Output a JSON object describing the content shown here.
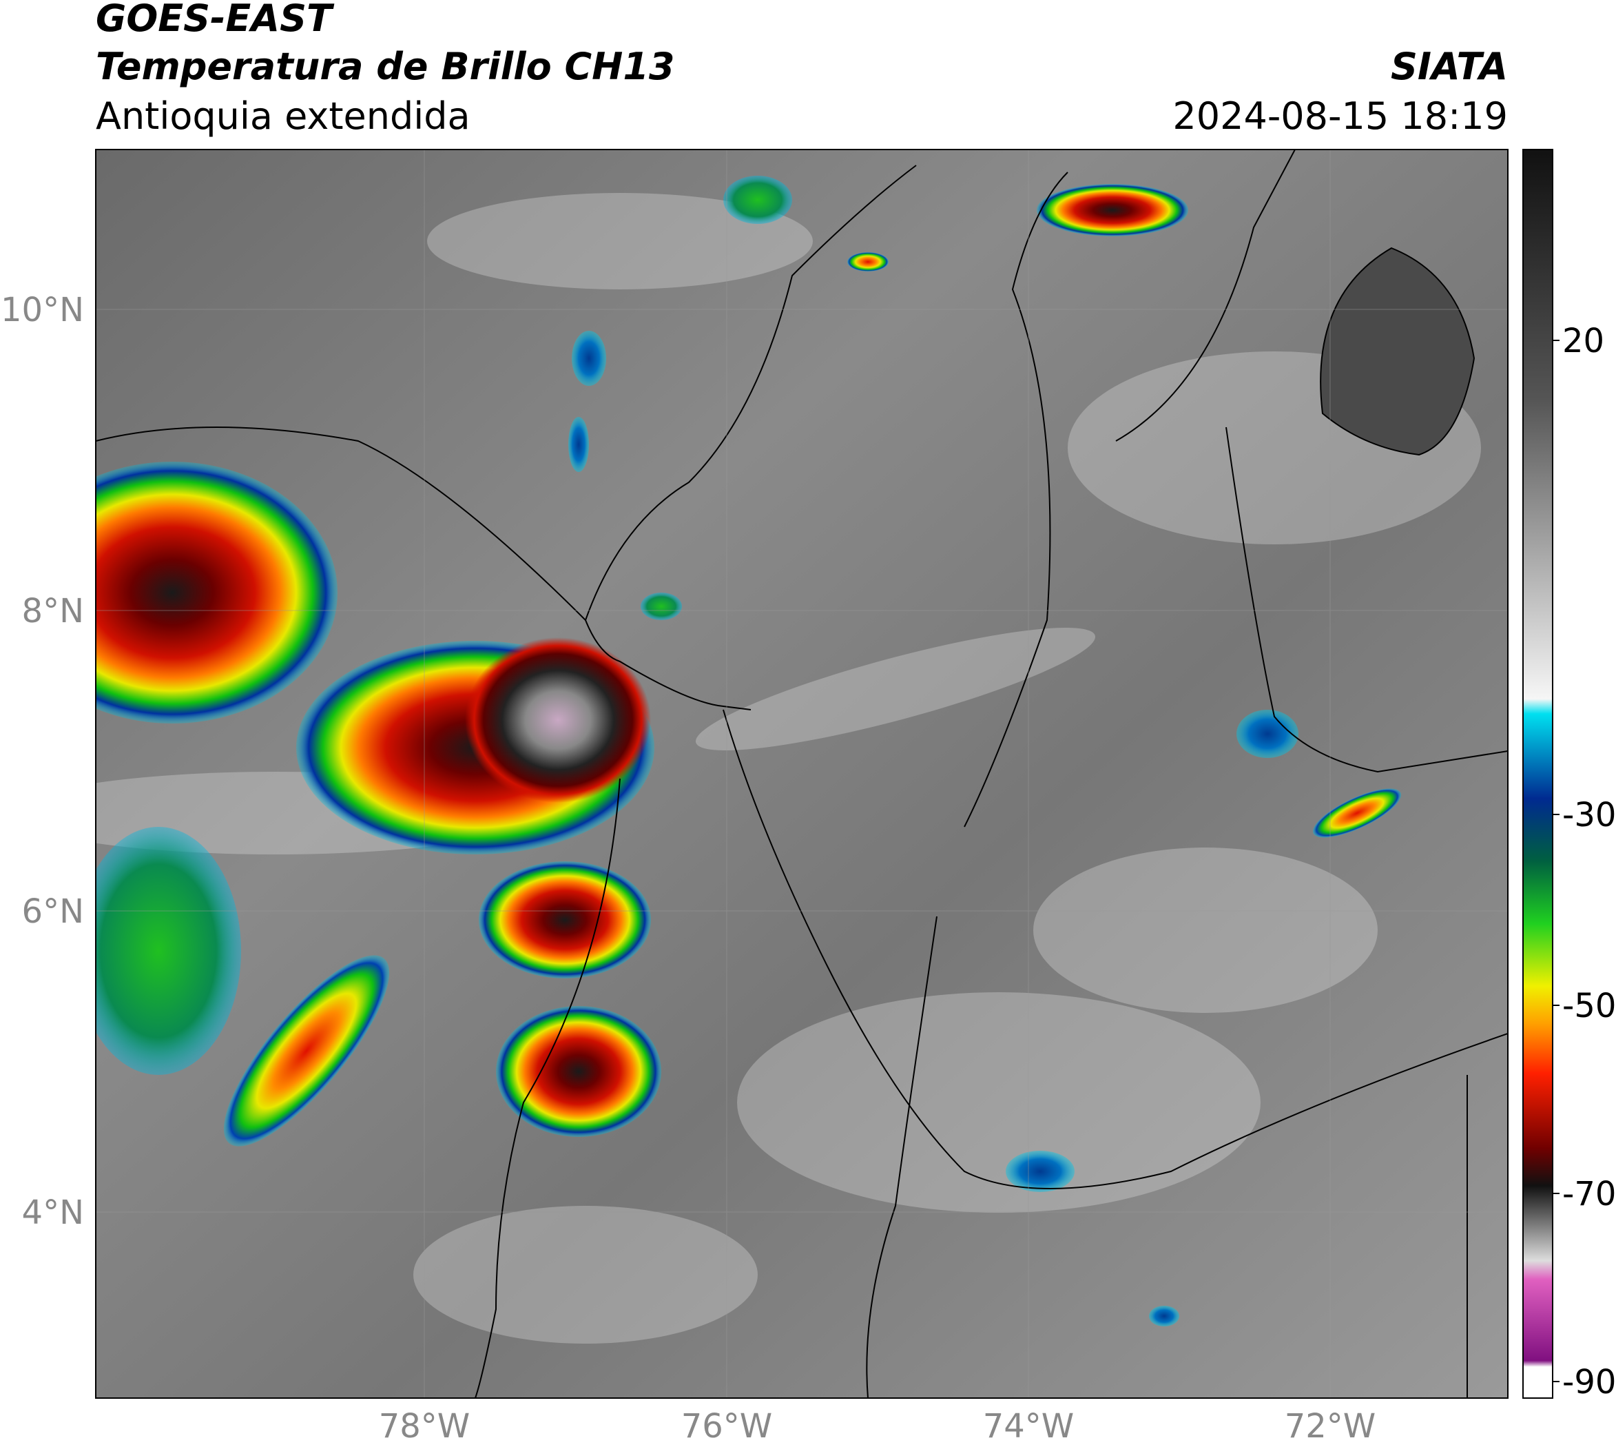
{
  "header": {
    "satellite": "GOES-EAST",
    "product": "Temperatura de Brillo CH13",
    "region": "Antioquia extendida",
    "source": "SIATA",
    "datetime": "2024-08-15 18:19"
  },
  "map": {
    "lat_labels": [
      "10°N",
      "8°N",
      "6°N",
      "4°N"
    ],
    "lon_labels": [
      "78°W",
      "76°W",
      "74°W",
      "72°W"
    ]
  },
  "colorbar": {
    "labels": [
      "20",
      "-30",
      "-50",
      "-70",
      "-90"
    ]
  }
}
